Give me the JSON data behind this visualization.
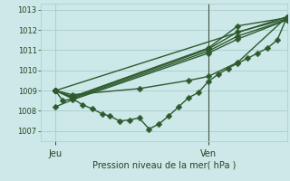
{
  "xlabel": "Pression niveau de la mer( hPa )",
  "bg_color": "#cce8e8",
  "grid_color": "#aacccc",
  "line_color": "#2d5a2d",
  "marker_color": "#2d5a2d",
  "ylim": [
    1006.5,
    1013.3
  ],
  "yticks": [
    1007,
    1008,
    1009,
    1010,
    1011,
    1012,
    1013
  ],
  "xlim": [
    0.0,
    1.0
  ],
  "day_labels": [
    "Jeu",
    "Ven"
  ],
  "day_positions": [
    0.06,
    0.68
  ],
  "vline_x": 0.68,
  "series": [
    {
      "x": [
        0.06,
        0.09,
        0.13,
        0.17,
        0.21,
        0.25,
        0.28,
        0.32,
        0.36,
        0.4,
        0.44,
        0.48,
        0.52,
        0.56,
        0.6,
        0.64,
        0.68,
        0.72,
        0.76,
        0.8,
        0.84,
        0.88,
        0.92,
        0.96,
        1.0
      ],
      "y": [
        1009.0,
        1008.5,
        1008.6,
        1008.3,
        1008.1,
        1007.85,
        1007.75,
        1007.5,
        1007.55,
        1007.65,
        1007.1,
        1007.35,
        1007.75,
        1008.2,
        1008.65,
        1008.9,
        1009.45,
        1009.8,
        1010.1,
        1010.35,
        1010.6,
        1010.85,
        1011.1,
        1011.5,
        1012.65
      ]
    },
    {
      "x": [
        0.06,
        1.0
      ],
      "y": [
        1009.0,
        1012.65
      ]
    },
    {
      "x": [
        0.06,
        0.13,
        0.68,
        0.8,
        1.0
      ],
      "y": [
        1009.0,
        1008.7,
        1011.1,
        1012.2,
        1012.6
      ]
    },
    {
      "x": [
        0.06,
        0.13,
        0.68,
        0.8,
        1.0
      ],
      "y": [
        1009.0,
        1008.65,
        1011.05,
        1011.9,
        1012.55
      ]
    },
    {
      "x": [
        0.06,
        0.13,
        0.68,
        0.8,
        1.0
      ],
      "y": [
        1009.0,
        1008.6,
        1010.95,
        1011.7,
        1012.5
      ]
    },
    {
      "x": [
        0.06,
        0.13,
        0.68,
        0.8,
        1.0
      ],
      "y": [
        1008.2,
        1008.55,
        1010.85,
        1011.55,
        1012.5
      ]
    },
    {
      "x": [
        0.06,
        0.13,
        0.4,
        0.6,
        0.68,
        0.8,
        1.0
      ],
      "y": [
        1009.0,
        1008.8,
        1009.1,
        1009.5,
        1009.7,
        1010.4,
        1012.65
      ]
    }
  ]
}
